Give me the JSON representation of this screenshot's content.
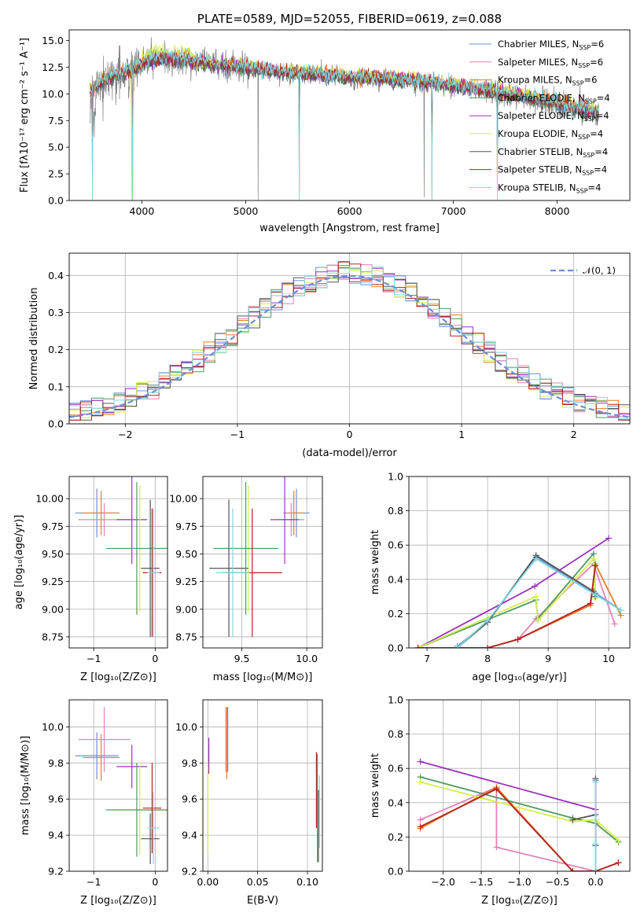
{
  "series_colors": {
    "chabrier_miles": "#6a8fd8",
    "salpeter_miles": "#e680b8",
    "kroupa_miles": "#e67e22",
    "chabrier_elodie": "#4e9a5e",
    "salpeter_elodie": "#9b30c0",
    "kroupa_elodie": "#d4ee4a",
    "chabrier_stelib": "#555555",
    "salpeter_stelib": "#b22222",
    "kroupa_stelib": "#7fd7e0"
  },
  "chart_data": [
    {
      "id": "spectrum",
      "type": "line",
      "title": "PLATE=0589, MJD=52055, FIBERID=0619, z=0.088",
      "xlabel": "wavelength [Angstrom, rest frame]",
      "ylabel": "Flux [fλ10⁻¹⁷ erg cm⁻² s⁻¹ A⁻¹]",
      "xlim": [
        3300,
        8700
      ],
      "ylim": [
        0,
        16
      ],
      "xticks": [
        "4000",
        "5000",
        "6000",
        "7000",
        "8000"
      ],
      "yticks": [
        "0.0",
        "2.5",
        "5.0",
        "7.5",
        "10.0",
        "12.5",
        "15.0"
      ],
      "legend_position": "top-right",
      "legend": [
        {
          "label": "Chabrier MILES, N",
          "sub": "SSP",
          "suffix": "=6",
          "color": "#6a8fd8"
        },
        {
          "label": "Salpeter MILES, N",
          "sub": "SSP",
          "suffix": "=6",
          "color": "#e680b8"
        },
        {
          "label": "Kroupa MILES, N",
          "sub": "SSP",
          "suffix": "=6",
          "color": "#e67e22"
        },
        {
          "label": "Chabrier ELODIE, N",
          "sub": "SSP",
          "suffix": "=4",
          "color": "#4e9a5e"
        },
        {
          "label": "Salpeter ELODIE, N",
          "sub": "SSP",
          "suffix": "=4",
          "color": "#9b30c0"
        },
        {
          "label": "Kroupa ELODIE, N",
          "sub": "SSP",
          "suffix": "=4",
          "color": "#d4ee4a"
        },
        {
          "label": "Chabrier STELIB, N",
          "sub": "SSP",
          "suffix": "=4",
          "color": "#555555"
        },
        {
          "label": "Salpeter STELIB, N",
          "sub": "SSP",
          "suffix": "=4",
          "color": "#b22222"
        },
        {
          "label": "Kroupa STELIB, N",
          "sub": "SSP",
          "suffix": "=4",
          "color": "#7fd7e0"
        }
      ],
      "continuum": {
        "x": [
          3500,
          3600,
          3700,
          3800,
          3900,
          4000,
          4100,
          4200,
          4300,
          4400,
          4500,
          4700,
          5000,
          5300,
          5600,
          6000,
          6400,
          6800,
          7200,
          7600,
          8000,
          8400
        ],
        "y": [
          10.3,
          11.0,
          11.6,
          11.9,
          12.3,
          12.8,
          13.2,
          13.3,
          13.3,
          13.2,
          13.1,
          12.8,
          12.5,
          12.1,
          11.9,
          11.6,
          11.4,
          11.1,
          10.5,
          9.9,
          9.1,
          8.2
        ]
      }
    },
    {
      "id": "residuals",
      "type": "step",
      "xlabel": "(data-model)/error",
      "ylabel": "Normed distribution",
      "xlim": [
        -2.5,
        2.5
      ],
      "ylim": [
        0,
        0.46
      ],
      "xticks": [
        "−2",
        "−1",
        "0",
        "1",
        "2"
      ],
      "yticks": [
        "0.0",
        "0.1",
        "0.2",
        "0.3",
        "0.4"
      ],
      "legend": [
        {
          "label": "𝒩(0, 1)",
          "color": "#6a8fd8"
        }
      ],
      "legend_position": "top-right",
      "bin_width": 0.1
    },
    {
      "id": "age_vs_Z",
      "type": "errorbar",
      "xlabel": "Z [log₁₀(Z/Z⊙)]",
      "ylabel": "age  [log₁₀(age/yr)]",
      "xlim": [
        -1.4,
        0.2
      ],
      "ylim": [
        8.65,
        10.2
      ],
      "xticks": [
        -1,
        0
      ],
      "yticks": [
        "8.75",
        "9.00",
        "9.25",
        "9.50",
        "9.75",
        "10.00"
      ],
      "points": [
        {
          "x": -0.95,
          "xerr": 0.35,
          "y": 9.87,
          "yerr": 0.22,
          "color": "#6a8fd8"
        },
        {
          "x": -0.88,
          "xerr": 0.3,
          "y": 9.87,
          "yerr": 0.2,
          "color": "#e67e22"
        },
        {
          "x": -0.83,
          "xerr": 0.42,
          "y": 9.81,
          "yerr": 0.15,
          "color": "#e680b8"
        },
        {
          "x": -0.38,
          "xerr": 0.25,
          "y": 9.81,
          "yerr": 0.4,
          "color": "#9b30c0"
        },
        {
          "x": -0.25,
          "xerr": 0.45,
          "y": 9.55,
          "yerr": 0.57,
          "color": "#d4ee4a"
        },
        {
          "x": -0.3,
          "xerr": 0.5,
          "y": 9.55,
          "yerr": 0.6,
          "color": "#4e9a5e"
        },
        {
          "x": -0.05,
          "xerr": 0.15,
          "y": 9.33,
          "yerr": 0.58,
          "color": "#b22222"
        },
        {
          "x": -0.08,
          "xerr": 0.15,
          "y": 9.37,
          "yerr": 0.62,
          "color": "#555555"
        },
        {
          "x": -0.03,
          "xerr": 0.1,
          "y": 9.33,
          "yerr": 0.58,
          "color": "#7fd7e0"
        }
      ]
    },
    {
      "id": "age_vs_mass",
      "type": "errorbar",
      "xlabel": "mass [log₁₀(M/M⊙)]",
      "ylabel": "",
      "xlim": [
        9.2,
        10.12
      ],
      "ylim": [
        8.65,
        10.2
      ],
      "xticks": [
        "9.5",
        "10.0"
      ],
      "yticks": [
        "8.75",
        "9.00",
        "9.25",
        "9.50",
        "9.75",
        "10.00"
      ],
      "points": [
        {
          "x": 9.92,
          "xerr": 0.1,
          "y": 9.87,
          "yerr": 0.22,
          "color": "#6a8fd8"
        },
        {
          "x": 9.9,
          "xerr": 0.08,
          "y": 9.87,
          "yerr": 0.2,
          "color": "#e67e22"
        },
        {
          "x": 9.88,
          "xerr": 0.1,
          "y": 9.81,
          "yerr": 0.15,
          "color": "#e680b8"
        },
        {
          "x": 9.83,
          "xerr": 0.11,
          "y": 9.81,
          "yerr": 0.4,
          "color": "#9b30c0"
        },
        {
          "x": 9.55,
          "xerr": 0.23,
          "y": 9.55,
          "yerr": 0.57,
          "color": "#d4ee4a"
        },
        {
          "x": 9.53,
          "xerr": 0.25,
          "y": 9.55,
          "yerr": 0.6,
          "color": "#4e9a5e"
        },
        {
          "x": 9.58,
          "xerr": 0.23,
          "y": 9.33,
          "yerr": 0.58,
          "color": "#b22222"
        },
        {
          "x": 9.4,
          "xerr": 0.15,
          "y": 9.37,
          "yerr": 0.62,
          "color": "#555555"
        },
        {
          "x": 9.43,
          "xerr": 0.13,
          "y": 9.33,
          "yerr": 0.58,
          "color": "#7fd7e0"
        }
      ]
    },
    {
      "id": "weight_vs_age",
      "type": "line",
      "xlabel": "age  [log₁₀(age/yr)]",
      "ylabel": "mass weight",
      "xlim": [
        6.7,
        10.35
      ],
      "ylim": [
        0,
        1.0
      ],
      "xticks": [
        7,
        8,
        9,
        10
      ],
      "yticks": [
        "0.0",
        "0.2",
        "0.4",
        "0.6",
        "0.8",
        "1.0"
      ],
      "series": [
        {
          "color": "#6a8fd8",
          "x": [
            7.5,
            8.0,
            8.8,
            9.78,
            10.2
          ],
          "y": [
            0.01,
            0.15,
            0.53,
            0.32,
            0.22
          ]
        },
        {
          "color": "#e680b8",
          "x": [
            6.85,
            8.0,
            8.5,
            8.8,
            9.75,
            10.1
          ],
          "y": [
            0.0,
            0.0,
            0.05,
            0.17,
            0.49,
            0.14
          ]
        },
        {
          "color": "#e67e22",
          "x": [
            6.85,
            8.0,
            8.5,
            9.7,
            9.78,
            10.2
          ],
          "y": [
            0.0,
            0.0,
            0.05,
            0.25,
            0.49,
            0.19
          ]
        },
        {
          "color": "#4e9a5e",
          "x": [
            6.85,
            8.8,
            8.83,
            9.75,
            9.78
          ],
          "y": [
            0.0,
            0.28,
            0.17,
            0.55,
            0.31
          ]
        },
        {
          "color": "#9b30c0",
          "x": [
            6.85,
            8.78,
            10.0
          ],
          "y": [
            0.0,
            0.36,
            0.64
          ]
        },
        {
          "color": "#d4ee4a",
          "x": [
            6.85,
            8.8,
            8.83,
            9.75,
            9.78
          ],
          "y": [
            0.0,
            0.3,
            0.16,
            0.52,
            0.29
          ]
        },
        {
          "color": "#555555",
          "x": [
            7.5,
            8.0,
            8.8,
            9.75,
            9.78
          ],
          "y": [
            0.0,
            0.15,
            0.54,
            0.33,
            0.3
          ]
        },
        {
          "color": "#b22222",
          "x": [
            6.85,
            8.0,
            8.5,
            9.7,
            9.78
          ],
          "y": [
            0.0,
            0.0,
            0.05,
            0.26,
            0.48
          ]
        },
        {
          "color": "#7fd7e0",
          "x": [
            7.5,
            8.0,
            8.8,
            9.78,
            10.2
          ],
          "y": [
            0.0,
            0.16,
            0.52,
            0.31,
            0.22
          ]
        }
      ]
    },
    {
      "id": "mass_vs_Z",
      "type": "errorbar",
      "xlabel": "Z [log₁₀(Z/Z⊙)]",
      "ylabel": "mass [log₁₀(M/M⊙)]",
      "xlim": [
        -1.4,
        0.2
      ],
      "ylim": [
        9.2,
        10.15
      ],
      "xticks": [
        -1,
        0
      ],
      "yticks": [
        "9.2",
        "9.4",
        "9.6",
        "9.8",
        "10.0"
      ],
      "points": [
        {
          "x": -0.95,
          "xerr": 0.35,
          "y": 9.84,
          "yerr": 0.13,
          "color": "#6a8fd8"
        },
        {
          "x": -0.88,
          "xerr": 0.3,
          "y": 9.83,
          "yerr": 0.13,
          "color": "#e67e22"
        },
        {
          "x": -0.83,
          "xerr": 0.42,
          "y": 9.93,
          "yerr": 0.18,
          "color": "#e680b8"
        },
        {
          "x": -0.38,
          "xerr": 0.25,
          "y": 9.78,
          "yerr": 0.12,
          "color": "#9b30c0"
        },
        {
          "x": -0.25,
          "xerr": 0.45,
          "y": 9.54,
          "yerr": 0.25,
          "color": "#d4ee4a"
        },
        {
          "x": -0.3,
          "xerr": 0.5,
          "y": 9.54,
          "yerr": 0.26,
          "color": "#4e9a5e"
        },
        {
          "x": -0.05,
          "xerr": 0.15,
          "y": 9.55,
          "yerr": 0.25,
          "color": "#b22222"
        },
        {
          "x": -0.08,
          "xerr": 0.15,
          "y": 9.38,
          "yerr": 0.14,
          "color": "#555555"
        },
        {
          "x": -0.03,
          "xerr": 0.1,
          "y": 9.44,
          "yerr": 0.2,
          "color": "#7fd7e0"
        }
      ]
    },
    {
      "id": "mass_vs_ebv",
      "type": "errorbar",
      "xlabel": "E(B-V)",
      "ylabel": "",
      "xlim": [
        -0.005,
        0.115
      ],
      "ylim": [
        9.2,
        10.15
      ],
      "xticks": [
        "0.00",
        "0.05",
        "0.10"
      ],
      "yticks": [
        "9.2",
        "9.4",
        "9.6",
        "9.8",
        "10.0"
      ],
      "points": [
        {
          "x": 0.02,
          "xerr": 0,
          "y": 9.93,
          "yerr": 0.18,
          "color": "#6a8fd8"
        },
        {
          "x": 0.019,
          "xerr": 0,
          "y": 9.91,
          "yerr": 0.2,
          "color": "#e67e22"
        },
        {
          "x": 0.018,
          "xerr": 0,
          "y": 9.93,
          "yerr": 0.18,
          "color": "#e680b8"
        },
        {
          "x": 0.001,
          "xerr": 0,
          "y": 9.84,
          "yerr": 0.1,
          "color": "#9b30c0"
        },
        {
          "x": 0.0,
          "xerr": 0,
          "y": 9.55,
          "yerr": 0.25,
          "color": "#d4ee4a"
        },
        {
          "x": 0.11,
          "xerr": 0,
          "y": 9.55,
          "yerr": 0.3,
          "color": "#4e9a5e"
        },
        {
          "x": 0.109,
          "xerr": 0,
          "y": 9.65,
          "yerr": 0.21,
          "color": "#b22222"
        },
        {
          "x": 0.111,
          "xerr": 0,
          "y": 9.45,
          "yerr": 0.2,
          "color": "#555555"
        },
        {
          "x": 0.112,
          "xerr": 0,
          "y": 9.53,
          "yerr": 0.2,
          "color": "#7fd7e0"
        }
      ]
    },
    {
      "id": "weight_vs_Z",
      "type": "line",
      "xlabel": "Z [log₁₀(Z/Z⊙)]",
      "ylabel": "mass weight",
      "xlim": [
        -2.45,
        0.45
      ],
      "ylim": [
        0,
        1.0
      ],
      "xticks": [
        "−2.0",
        "−1.5",
        "−1.0",
        "−0.5",
        "0.0"
      ],
      "yticks": [
        "0.0",
        "0.2",
        "0.4",
        "0.6",
        "0.8",
        "1.0"
      ],
      "series": [
        {
          "color": "#6a8fd8",
          "x": [
            0.0,
            0.0,
            0.0
          ],
          "y": [
            0.53,
            0.15,
            0.0
          ]
        },
        {
          "color": "#e680b8",
          "x": [
            -2.3,
            -1.3,
            -1.3,
            0.0
          ],
          "y": [
            0.3,
            0.49,
            0.14,
            0.0
          ]
        },
        {
          "color": "#e67e22",
          "x": [
            -2.3,
            -1.3,
            -0.3,
            0.0,
            0.3
          ],
          "y": [
            0.25,
            0.49,
            0.0,
            0.0,
            0.05
          ]
        },
        {
          "color": "#4e9a5e",
          "x": [
            -2.3,
            -0.3,
            0.0,
            0.3
          ],
          "y": [
            0.55,
            0.31,
            0.28,
            0.17
          ]
        },
        {
          "color": "#9b30c0",
          "x": [
            -2.3,
            0.0
          ],
          "y": [
            0.64,
            0.36
          ]
        },
        {
          "color": "#d4ee4a",
          "x": [
            -2.3,
            -0.3,
            0.0,
            0.3
          ],
          "y": [
            0.52,
            0.29,
            0.3,
            0.18
          ]
        },
        {
          "color": "#555555",
          "x": [
            -0.3,
            0.0,
            0.0,
            0.0
          ],
          "y": [
            0.3,
            0.33,
            0.15,
            0.54
          ]
        },
        {
          "color": "#b22222",
          "x": [
            -2.3,
            -1.3,
            -0.3,
            0.0,
            0.3
          ],
          "y": [
            0.26,
            0.48,
            0.0,
            0.0,
            0.05
          ]
        },
        {
          "color": "#7fd7e0",
          "x": [
            0.0,
            0.0,
            0.0
          ],
          "y": [
            0.52,
            0.16,
            0.0
          ]
        }
      ]
    }
  ]
}
